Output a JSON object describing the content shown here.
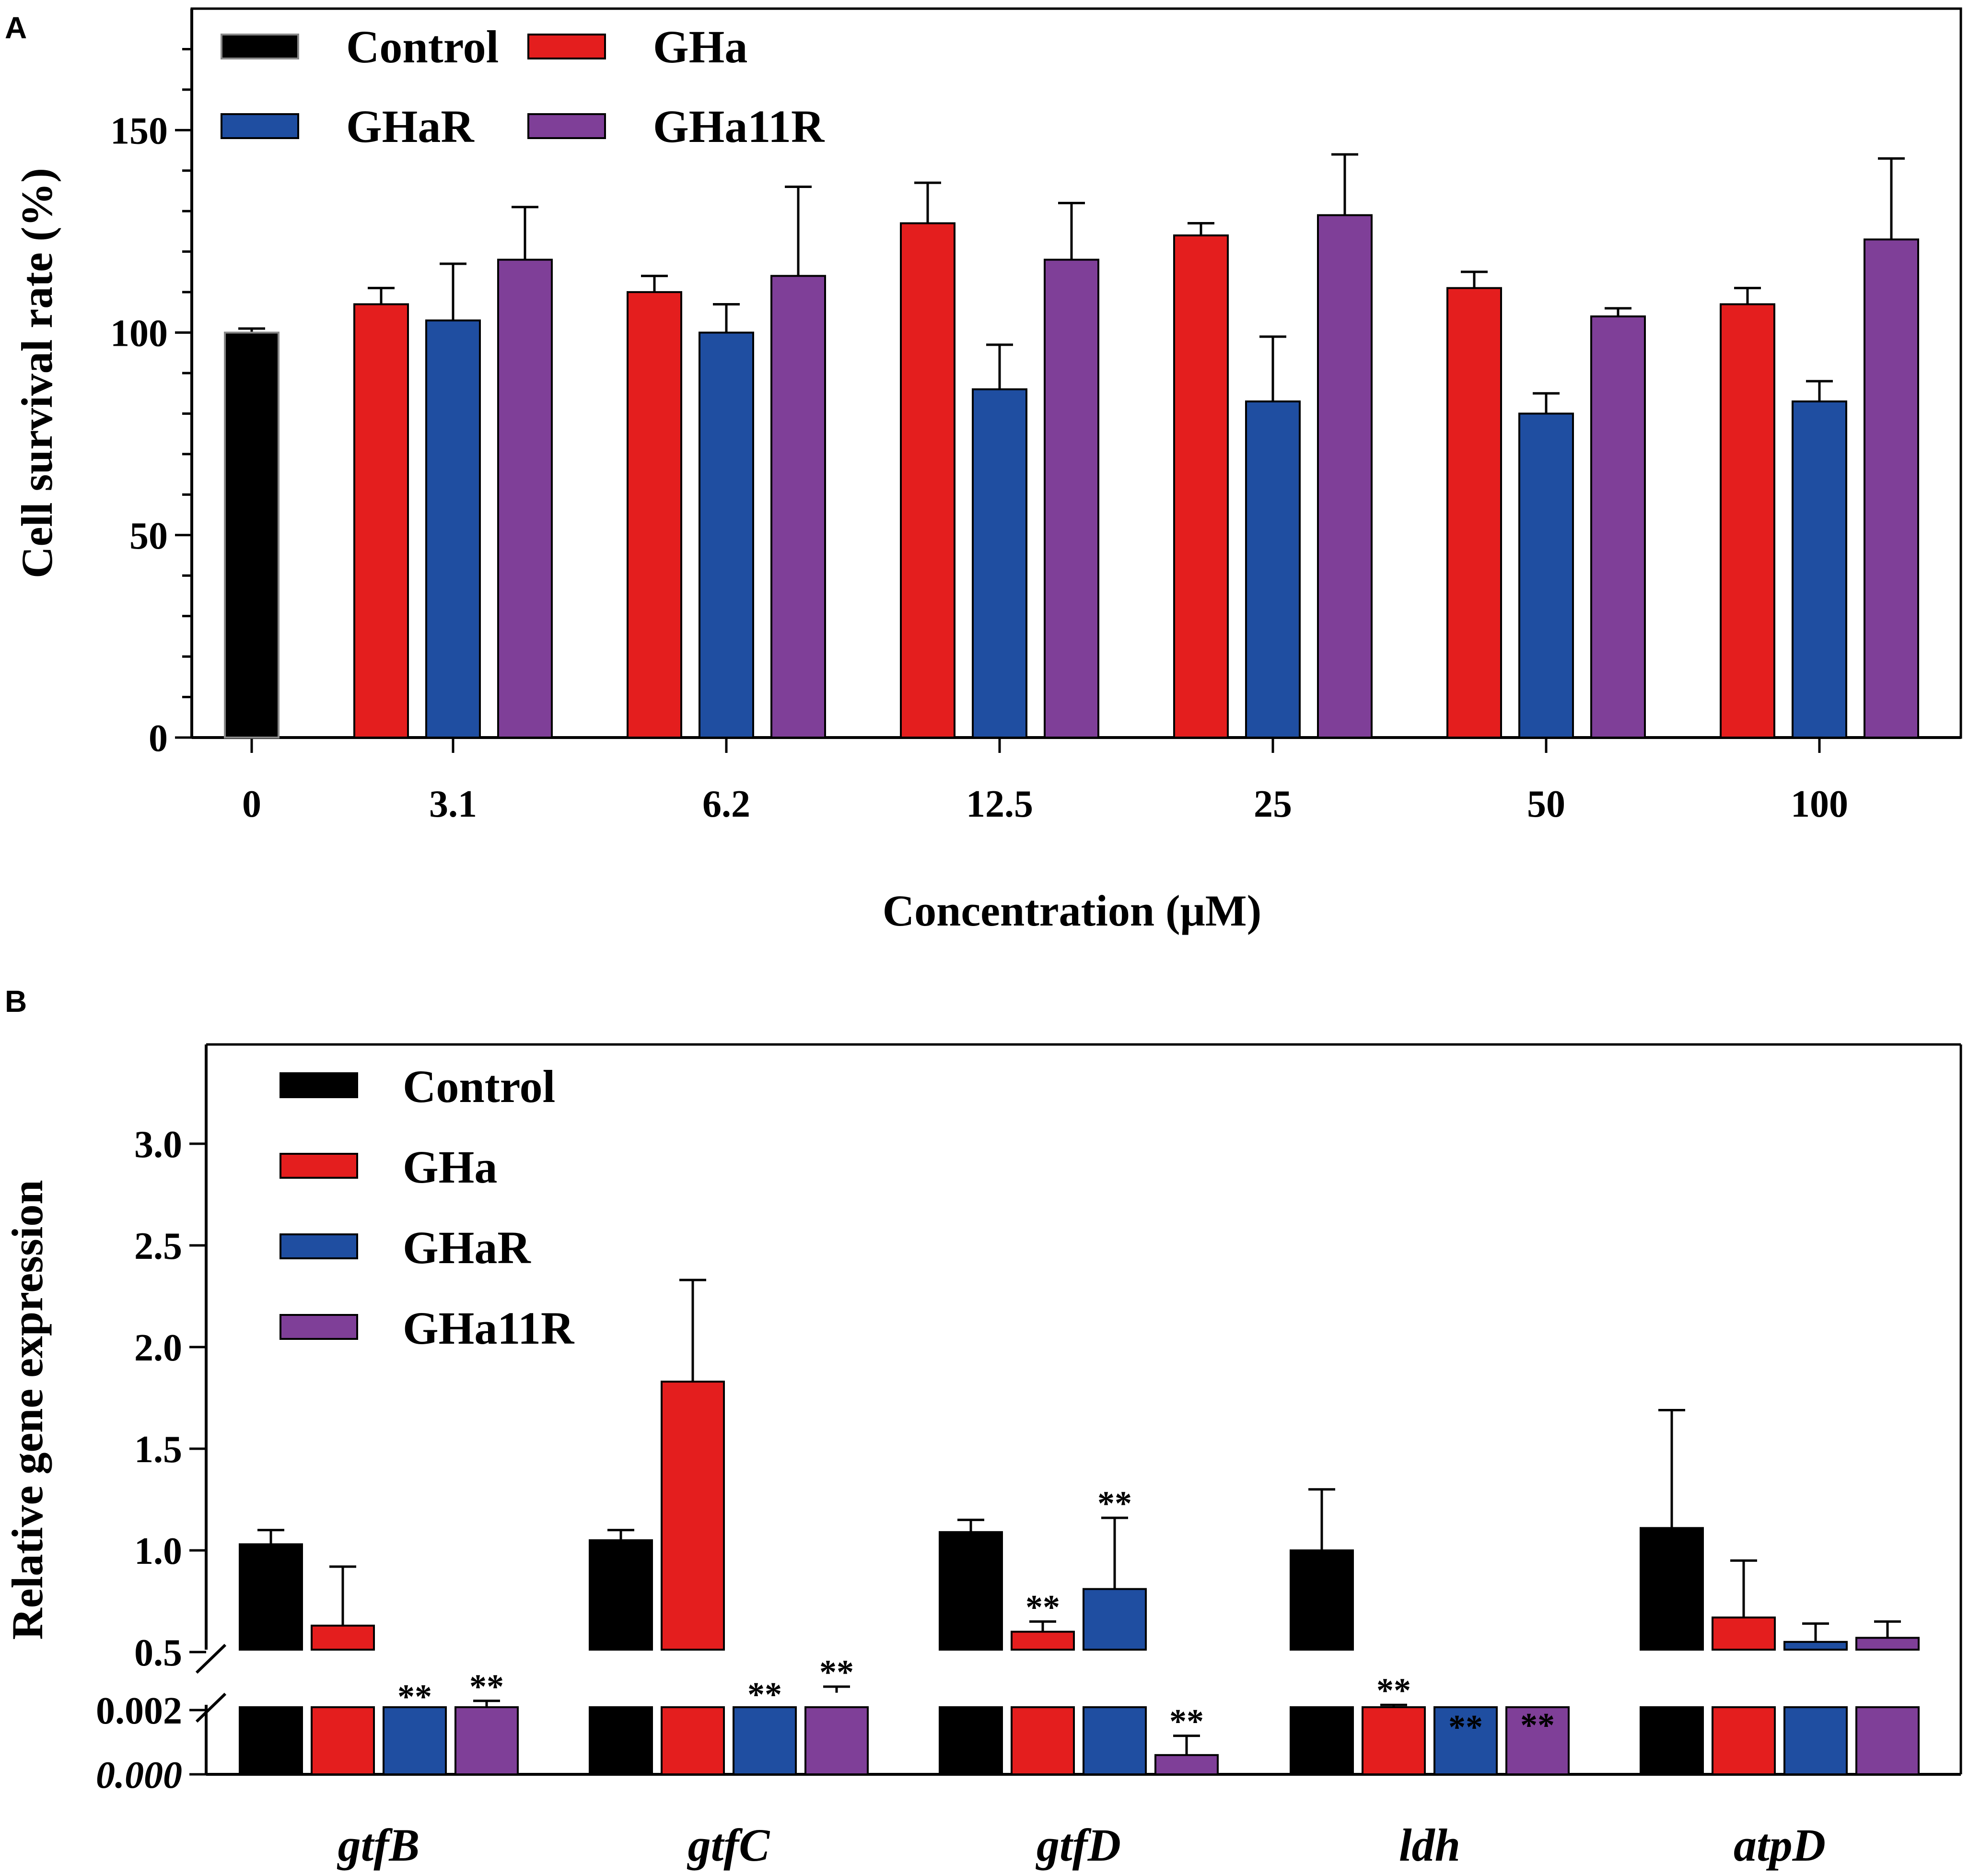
{
  "colors": {
    "Control": "#000000",
    "GHa": "#e41e1e",
    "GHaR": "#1f4ea1",
    "GHa11R": "#7f3f98"
  },
  "chart_data": [
    {
      "panel": "A",
      "type": "bar",
      "xlabel": "Concentration (μM)",
      "ylabel": "Cell survival rate (%)",
      "ylim": [
        0,
        180
      ],
      "yticks": [
        0,
        50,
        100,
        150
      ],
      "categories": [
        "0",
        "3.1",
        "6.2",
        "12.5",
        "25",
        "50",
        "100"
      ],
      "legend": [
        "Control",
        "GHa",
        "GHaR",
        "GHa11R"
      ],
      "legend_position": "top-left",
      "series": [
        {
          "name": "Control",
          "values": [
            100,
            null,
            null,
            null,
            null,
            null,
            null
          ],
          "errors": [
            1,
            null,
            null,
            null,
            null,
            null,
            null
          ]
        },
        {
          "name": "GHa",
          "values": [
            null,
            107,
            110,
            127,
            124,
            111,
            107
          ],
          "errors": [
            null,
            4,
            4,
            10,
            3,
            4,
            4
          ]
        },
        {
          "name": "GHaR",
          "values": [
            null,
            103,
            100,
            86,
            83,
            80,
            83
          ],
          "errors": [
            null,
            14,
            7,
            11,
            16,
            5,
            5
          ]
        },
        {
          "name": "GHa11R",
          "values": [
            null,
            118,
            114,
            118,
            129,
            104,
            123
          ],
          "errors": [
            null,
            13,
            22,
            14,
            15,
            2,
            20
          ]
        }
      ]
    },
    {
      "panel": "B",
      "type": "bar",
      "xlabel": "",
      "ylabel": "Relative gene expression",
      "y_axis_break": true,
      "upper_yticks": [
        "0.5",
        "1.0",
        "1.5",
        "2.0",
        "2.5",
        "3.0"
      ],
      "lower_yticks": [
        "0.000",
        "0.002"
      ],
      "categories": [
        "gtfB",
        "gtfC",
        "gtfD",
        "ldh",
        "atpD"
      ],
      "legend": [
        "Control",
        "GHa",
        "GHaR",
        "GHa11R"
      ],
      "legend_position": "top-left",
      "significance_marker": "**",
      "series": [
        {
          "name": "Control",
          "values": [
            1.03,
            1.05,
            1.09,
            1.0,
            1.11
          ],
          "errors": [
            0.07,
            0.05,
            0.06,
            0.3,
            0.58
          ],
          "significant": [
            false,
            false,
            false,
            false,
            false
          ]
        },
        {
          "name": "GHa",
          "values": [
            0.63,
            1.83,
            0.6,
            0.15,
            0.67
          ],
          "errors": [
            0.29,
            0.5,
            0.05,
            0.09,
            0.28
          ],
          "significant": [
            false,
            false,
            true,
            true,
            false
          ]
        },
        {
          "name": "GHaR",
          "values": [
            0.19,
            0.18,
            0.81,
            0.01,
            0.55
          ],
          "errors": [
            0.02,
            0.04,
            0.35,
            0.05,
            0.09
          ],
          "significant": [
            true,
            true,
            true,
            true,
            false
          ]
        },
        {
          "name": "GHa11R",
          "values": [
            0.23,
            0.3,
            0.0006,
            0.04,
            0.57
          ],
          "errors": [
            0.03,
            0.03,
            0.0006,
            0.03,
            0.08
          ],
          "significant": [
            true,
            true,
            true,
            true,
            false
          ]
        }
      ]
    }
  ],
  "panelA": {
    "label": "A"
  },
  "panelB": {
    "label": "B"
  }
}
